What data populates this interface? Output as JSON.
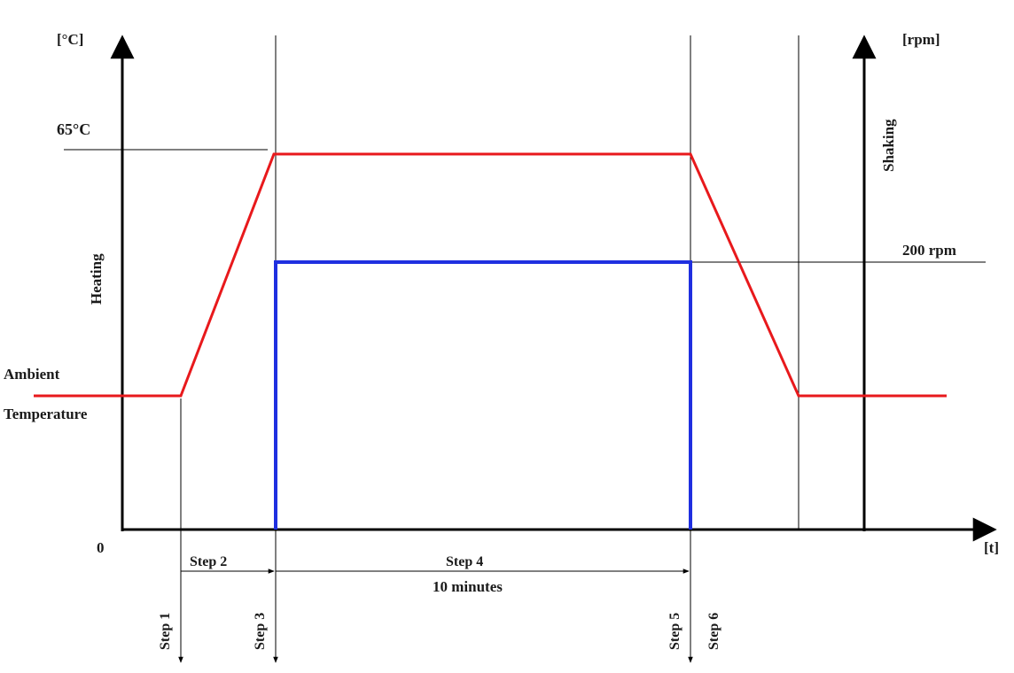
{
  "axes": {
    "y_left_unit": "[°C]",
    "y_right_unit": "[rpm]",
    "x_unit": "[t]",
    "origin_label": "0"
  },
  "labels": {
    "heating": "Heating",
    "shaking": "Shaking",
    "temp_max": "65°C",
    "rpm_max": "200 rpm",
    "ambient_line1": "Ambient",
    "ambient_line2": "Temperature"
  },
  "steps": {
    "step1": "Step 1",
    "step2": "Step 2",
    "step3": "Step 3",
    "step4": "Step 4",
    "step4_duration": "10 minutes",
    "step5": "Step 5",
    "step6": "Step 6"
  },
  "colors": {
    "temperature_curve": "#e8191c",
    "shaking_curve": "#1f2fe0",
    "axis": "#000000",
    "guide": "#000000"
  },
  "chart_data": {
    "type": "line",
    "series": [
      {
        "name": "Heating",
        "shape": "trapezoid",
        "levels": [
          "Ambient Temperature",
          "65°C",
          "Ambient Temperature"
        ]
      },
      {
        "name": "Shaking",
        "shape": "rectangular pulse",
        "levels": [
          "0",
          "200 rpm",
          "0"
        ]
      }
    ]
  }
}
